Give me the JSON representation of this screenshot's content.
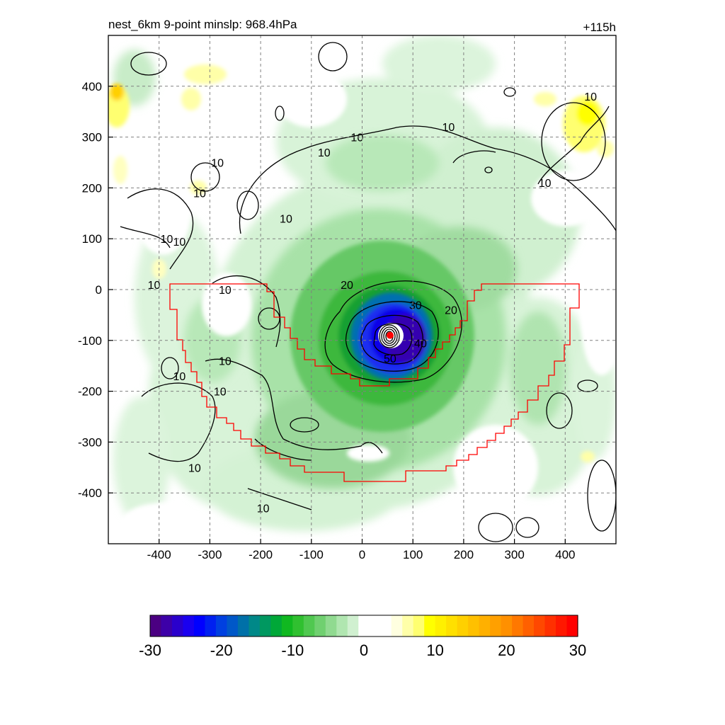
{
  "chart_data": {
    "type": "heatmap",
    "title": "nest_6km  9-point minslp: 968.4hPa",
    "time_label": "+115h",
    "xlabel": "",
    "ylabel": "",
    "xlim": [
      -500,
      500
    ],
    "ylim": [
      -500,
      500
    ],
    "x_ticks": [
      -400,
      -300,
      -200,
      -100,
      0,
      100,
      200,
      300,
      400
    ],
    "y_ticks": [
      400,
      300,
      200,
      100,
      0,
      -100,
      -200,
      -300,
      -400
    ],
    "grid": true,
    "fill_field": {
      "description_note": "",
      "vmin": -30,
      "vmax": 30,
      "center": {
        "x": 50,
        "y": -90
      },
      "eyewall_core_value": -28
    },
    "contour_lines": {
      "levels": [
        10,
        20,
        30,
        40,
        50
      ],
      "labels": [
        {
          "text": "10",
          "x": -75,
          "y": 270
        },
        {
          "text": "10",
          "x": -320,
          "y": 190
        },
        {
          "text": "10",
          "x": -150,
          "y": 140
        },
        {
          "text": "10",
          "x": -285,
          "y": 250
        },
        {
          "text": "10",
          "x": -385,
          "y": 100
        },
        {
          "text": "10",
          "x": -360,
          "y": 95
        },
        {
          "text": "10",
          "x": -410,
          "y": 10
        },
        {
          "text": "10",
          "x": -270,
          "y": 0
        },
        {
          "text": "10",
          "x": -270,
          "y": -140
        },
        {
          "text": "10",
          "x": -360,
          "y": -170
        },
        {
          "text": "10",
          "x": -280,
          "y": -200
        },
        {
          "text": "10",
          "x": -330,
          "y": -350
        },
        {
          "text": "10",
          "x": -195,
          "y": -430
        },
        {
          "text": "10",
          "x": -10,
          "y": 300
        },
        {
          "text": "10",
          "x": 170,
          "y": 320
        },
        {
          "text": "10",
          "x": 360,
          "y": 210
        },
        {
          "text": "10",
          "x": 450,
          "y": 380
        },
        {
          "text": "20",
          "x": -30,
          "y": 10
        },
        {
          "text": "20",
          "x": 175,
          "y": -40
        },
        {
          "text": "30",
          "x": 105,
          "y": -30
        },
        {
          "text": "40",
          "x": 115,
          "y": -105
        },
        {
          "text": "50",
          "x": 55,
          "y": -135
        }
      ]
    },
    "subdomain_outline_color": "#ff0000",
    "storm_center_marker": {
      "x": 55,
      "y": -90,
      "color": "#ff0000"
    },
    "colorbar": {
      "ticks": [
        "-30",
        "-20",
        "-10",
        "0",
        "10",
        "20",
        "30"
      ],
      "colors": [
        "#4b0082",
        "#3d00a8",
        "#2a00cc",
        "#1a00f0",
        "#0000ff",
        "#0020f0",
        "#0040e0",
        "#0058c8",
        "#0070a8",
        "#008888",
        "#009860",
        "#00a838",
        "#10b820",
        "#30c030",
        "#50c850",
        "#70d070",
        "#90da90",
        "#b0e6b0",
        "#d0f0d0",
        "#ffffff",
        "#ffffff",
        "#ffffff",
        "#ffffe0",
        "#ffffa8",
        "#ffff70",
        "#ffff00",
        "#fff000",
        "#ffe000",
        "#ffd000",
        "#ffc000",
        "#ffb000",
        "#ffa000",
        "#ff9000",
        "#ff7800",
        "#ff6000",
        "#ff4800",
        "#ff3000",
        "#ff1800",
        "#ff0000"
      ]
    },
    "colors": {
      "contour": "#000000",
      "grid": "#808080",
      "outline": "#ff0000"
    }
  }
}
